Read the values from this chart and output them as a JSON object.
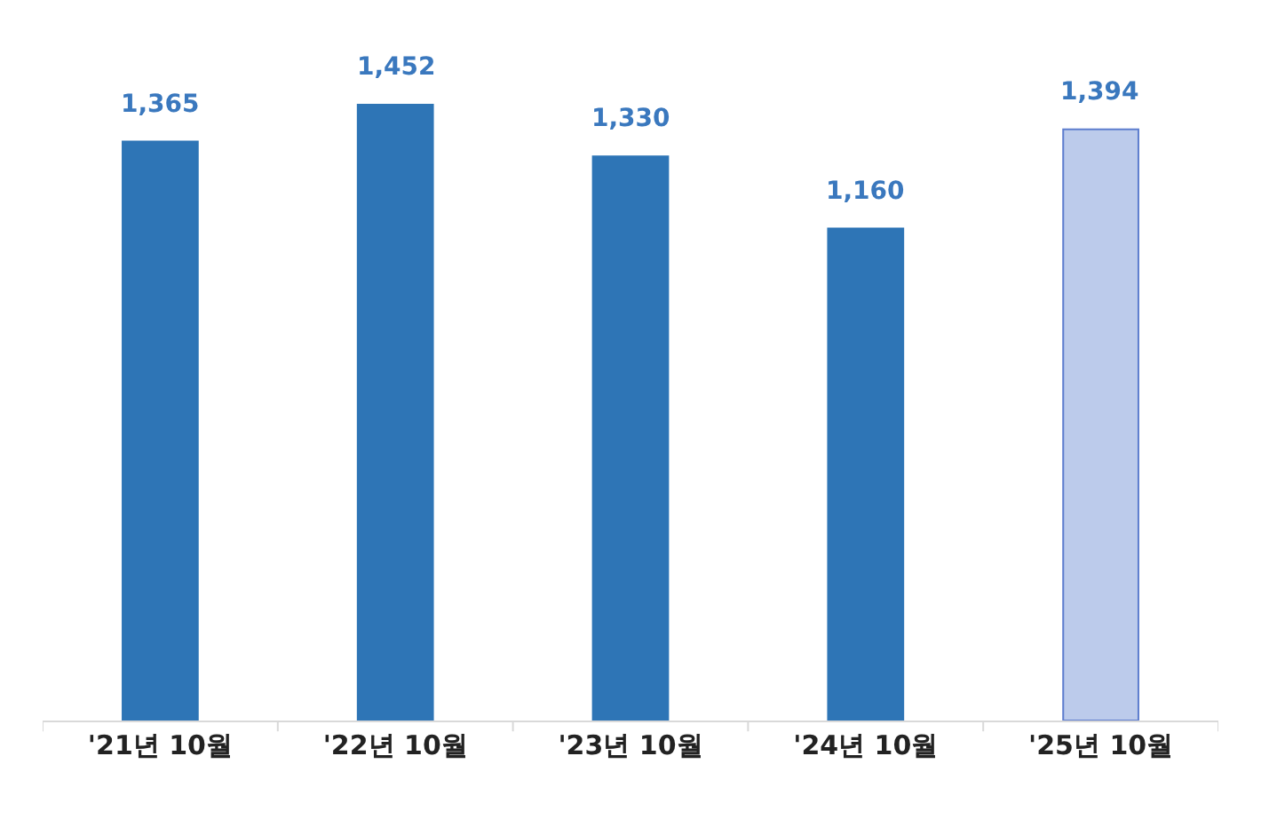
{
  "chart_data": {
    "type": "bar",
    "categories": [
      "'21년 10월",
      "'22년 10월",
      "'23년 10월",
      "'24년 10월",
      "'25년 10월"
    ],
    "values": [
      1365,
      1452,
      1330,
      1160,
      1394
    ],
    "value_labels": [
      "1,365",
      "1,452",
      "1,330",
      "1,160",
      "1,394"
    ],
    "colors": [
      "#2e75b6",
      "#2e75b6",
      "#2e75b6",
      "#2e75b6",
      "#bccbeb"
    ],
    "tick_labels": "x"
  }
}
